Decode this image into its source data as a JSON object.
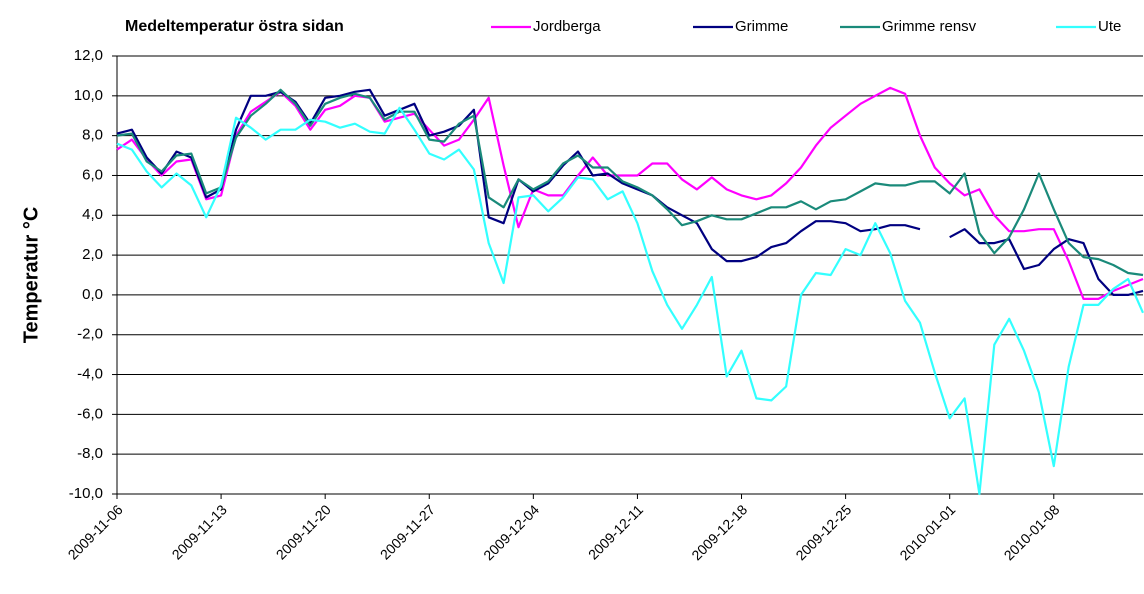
{
  "chart_data": {
    "type": "line",
    "title": "Medeltemperatur östra sidan",
    "y_label": "Temperatur °C",
    "x": [
      "2009-11-06",
      "2009-11-07",
      "2009-11-08",
      "2009-11-09",
      "2009-11-10",
      "2009-11-11",
      "2009-11-12",
      "2009-11-13",
      "2009-11-14",
      "2009-11-15",
      "2009-11-16",
      "2009-11-17",
      "2009-11-18",
      "2009-11-19",
      "2009-11-20",
      "2009-11-21",
      "2009-11-22",
      "2009-11-23",
      "2009-11-24",
      "2009-11-25",
      "2009-11-26",
      "2009-11-27",
      "2009-11-28",
      "2009-11-29",
      "2009-11-30",
      "2009-12-01",
      "2009-12-02",
      "2009-12-03",
      "2009-12-04",
      "2009-12-05",
      "2009-12-06",
      "2009-12-07",
      "2009-12-08",
      "2009-12-09",
      "2009-12-10",
      "2009-12-11",
      "2009-12-12",
      "2009-12-13",
      "2009-12-14",
      "2009-12-15",
      "2009-12-16",
      "2009-12-17",
      "2009-12-18",
      "2009-12-19",
      "2009-12-20",
      "2009-12-21",
      "2009-12-22",
      "2009-12-23",
      "2009-12-24",
      "2009-12-25",
      "2009-12-26",
      "2009-12-27",
      "2009-12-28",
      "2009-12-29",
      "2009-12-30",
      "2009-12-31",
      "2010-01-01",
      "2010-01-02",
      "2010-01-03",
      "2010-01-04",
      "2010-01-05",
      "2010-01-06",
      "2010-01-07",
      "2010-01-08",
      "2010-01-09",
      "2010-01-10",
      "2010-01-11",
      "2010-01-12",
      "2010-01-13",
      "2010-01-14"
    ],
    "series": [
      {
        "name": "Jordberga",
        "color": "#ff00ff",
        "values": [
          7.3,
          7.8,
          6.8,
          6.0,
          6.7,
          6.8,
          4.8,
          5.0,
          8.0,
          9.2,
          9.7,
          10.2,
          9.5,
          8.3,
          9.3,
          9.5,
          10.0,
          9.9,
          8.7,
          8.9,
          9.1,
          8.3,
          7.5,
          7.8,
          8.8,
          9.9,
          6.5,
          3.4,
          5.3,
          5.0,
          5.0,
          6.0,
          6.9,
          6.0,
          6.0,
          6.0,
          6.6,
          6.6,
          5.8,
          5.3,
          5.9,
          5.3,
          5.0,
          4.8,
          5.0,
          5.6,
          6.4,
          7.5,
          8.4,
          9.0,
          9.6,
          10.0,
          10.4,
          10.1,
          8.0,
          6.4,
          5.6,
          5.0,
          5.3,
          4.0,
          3.2,
          3.2,
          3.3,
          3.3,
          1.7,
          -0.2,
          -0.2,
          0.2,
          0.5,
          0.8
        ]
      },
      {
        "name": "Grimme",
        "color": "#000080",
        "values": [
          8.1,
          8.3,
          6.9,
          6.1,
          7.2,
          6.9,
          4.9,
          5.3,
          8.3,
          10.0,
          10.0,
          10.2,
          9.7,
          8.6,
          9.9,
          10.0,
          10.2,
          10.3,
          9.0,
          9.3,
          9.6,
          8.0,
          8.2,
          8.5,
          9.3,
          3.9,
          3.6,
          5.8,
          5.2,
          5.6,
          6.5,
          7.2,
          6.0,
          6.1,
          5.6,
          5.3,
          5.0,
          4.4,
          4.0,
          3.6,
          2.3,
          1.7,
          1.7,
          1.9,
          2.4,
          2.6,
          3.2,
          3.7,
          3.7,
          3.6,
          3.2,
          3.3,
          3.5,
          3.5,
          3.3,
          null,
          2.9,
          3.3,
          2.6,
          2.6,
          2.8,
          1.3,
          1.5,
          2.3,
          2.8,
          2.6,
          0.8,
          0.0,
          0.0,
          0.2
        ]
      },
      {
        "name": "Grimme rensv",
        "color": "#1a8a7a",
        "values": [
          8.0,
          8.1,
          6.7,
          6.2,
          7.0,
          7.1,
          5.1,
          5.4,
          7.9,
          9.0,
          9.6,
          10.3,
          9.6,
          8.5,
          9.6,
          9.9,
          10.1,
          9.9,
          8.8,
          9.2,
          9.2,
          7.8,
          7.7,
          8.6,
          9.0,
          4.9,
          4.4,
          5.8,
          5.3,
          5.7,
          6.6,
          7.0,
          6.4,
          6.4,
          5.7,
          5.4,
          5.0,
          4.3,
          3.5,
          3.7,
          4.0,
          3.8,
          3.8,
          4.1,
          4.4,
          4.4,
          4.7,
          4.3,
          4.7,
          4.8,
          5.2,
          5.6,
          5.5,
          5.5,
          5.7,
          5.7,
          5.1,
          6.1,
          3.1,
          2.1,
          2.9,
          4.3,
          6.1,
          4.3,
          2.6,
          1.9,
          1.8,
          1.5,
          1.1,
          1.0
        ]
      },
      {
        "name": "Ute",
        "color": "#33ffff",
        "values": [
          7.6,
          7.3,
          6.2,
          5.4,
          6.1,
          5.5,
          3.9,
          5.5,
          8.9,
          8.4,
          7.8,
          8.3,
          8.3,
          8.8,
          8.7,
          8.4,
          8.6,
          8.2,
          8.1,
          9.4,
          8.3,
          7.1,
          6.8,
          7.3,
          6.3,
          2.6,
          0.6,
          4.9,
          5.0,
          4.2,
          4.9,
          5.9,
          5.8,
          4.8,
          5.2,
          3.6,
          1.2,
          -0.5,
          -1.7,
          -0.5,
          0.9,
          -4.1,
          -2.8,
          -5.2,
          -5.3,
          -4.6,
          0.0,
          1.1,
          1.0,
          2.3,
          2.0,
          3.6,
          2.1,
          -0.3,
          -1.4,
          -3.9,
          -6.2,
          -5.2,
          -10.0,
          -2.5,
          -1.2,
          -2.8,
          -4.9,
          -8.6,
          -3.6,
          -0.5,
          -0.5,
          0.3,
          0.8,
          -0.9
        ]
      }
    ],
    "xlim": [
      "2009-11-06",
      "2010-01-14"
    ],
    "xticks": [
      "2009-11-06",
      "2009-11-13",
      "2009-11-20",
      "2009-11-27",
      "2009-12-04",
      "2009-12-11",
      "2009-12-18",
      "2009-12-25",
      "2010-01-01",
      "2010-01-08"
    ],
    "ylim": [
      -10,
      12
    ],
    "yticks": [
      {
        "value": -10,
        "label": "-10,0"
      },
      {
        "value": -8,
        "label": "-8,0"
      },
      {
        "value": -6,
        "label": "-6,0"
      },
      {
        "value": -4,
        "label": "-4,0"
      },
      {
        "value": -2,
        "label": "-2,0"
      },
      {
        "value": 0,
        "label": "0,0"
      },
      {
        "value": 2,
        "label": "2,0"
      },
      {
        "value": 4,
        "label": "4,0"
      },
      {
        "value": 6,
        "label": "6,0"
      },
      {
        "value": 8,
        "label": "8,0"
      },
      {
        "value": 10,
        "label": "10,0"
      },
      {
        "value": 12,
        "label": "12,0"
      }
    ],
    "grid": true
  }
}
